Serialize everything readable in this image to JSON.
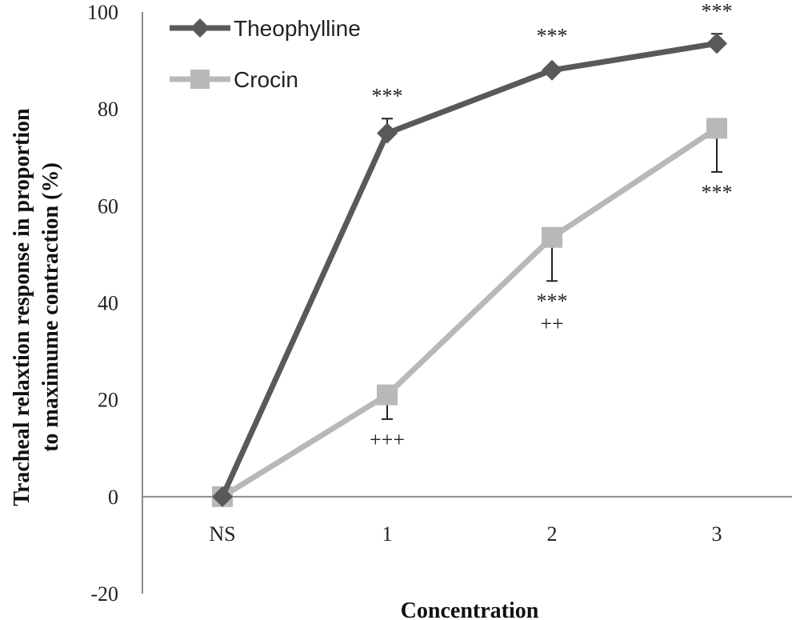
{
  "chart_data": {
    "type": "line",
    "categories": [
      "NS",
      "1",
      "2",
      "3"
    ],
    "ylabel_lines": [
      "Tracheal relaxtion response in proportion",
      "to maximume contraction (%)"
    ],
    "xlabel": "Concentration",
    "ylim": [
      -20,
      100
    ],
    "yticks": [
      "100",
      "80",
      "60",
      "40",
      "20",
      "0",
      "-20"
    ],
    "grid": false,
    "legend_position": "top-left",
    "series": [
      {
        "name": "Theophylline",
        "color": "#595959",
        "marker": "diamond",
        "values": [
          0,
          75,
          88,
          93.5
        ],
        "errors": [
          null,
          3,
          null,
          2
        ],
        "annotations_above": [
          null,
          [
            "***"
          ],
          [
            "***"
          ],
          [
            "***"
          ]
        ]
      },
      {
        "name": "Crocin",
        "color": "#b8b8b8",
        "marker": "square",
        "values": [
          0,
          21,
          53.5,
          76
        ],
        "errors": [
          null,
          5,
          9,
          9
        ],
        "annotations_below": [
          null,
          [
            "+++"
          ],
          [
            "***",
            "++"
          ],
          [
            "***"
          ]
        ]
      }
    ]
  }
}
